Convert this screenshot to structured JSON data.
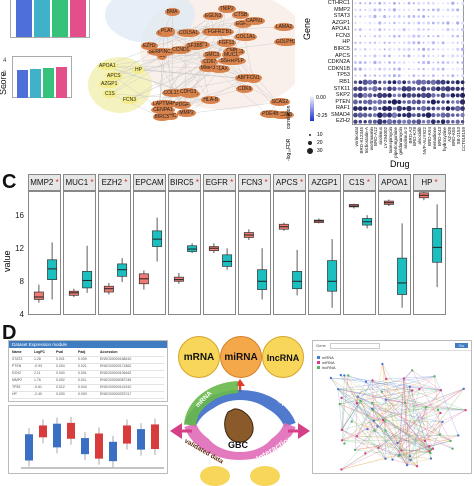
{
  "panels": {
    "c": "C",
    "d": "D"
  },
  "score_label": "Score",
  "score_bar_colors": [
    "#4f6fd8",
    "#3fb2c9",
    "#37c27c",
    "#e24f8a"
  ],
  "network": {
    "orange_nodes": [
      "EIF1AX",
      "MTOR",
      "CDS",
      "LAPTM4B",
      "LGALS3",
      "SFRP4",
      "CTSB",
      "SCARB1",
      "EGFR",
      "SSRRPLP",
      "BMA",
      "SLC2A3",
      "C5",
      "LAMA2",
      "MMP3",
      "COL1A1",
      "EHC",
      "CHD6",
      "FGF13",
      "COL1S4",
      "EPHX1",
      "CENPA1",
      "PDGF",
      "FGFR1",
      "CMB",
      "ERG",
      "PLAT",
      "EGLN3",
      "SERPINC3",
      "ABCC2",
      "GOLPH3",
      "CD67",
      "HLA-B",
      "SMC3",
      "COL5A1",
      "CAPN1",
      "CDH13",
      "PDE4B",
      "SCAS2",
      "FCN1",
      "TNIP2",
      "SF3B5",
      "CCND1",
      "CDK6",
      "MMP2",
      "EZH2",
      "MUC1",
      "BIRC5"
    ],
    "yellow_nodes": [
      "APOA1",
      "APCS",
      "AZGP1",
      "C1S",
      "FCN3",
      "HP"
    ]
  },
  "dotplot": {
    "genes": [
      "CTHRC1",
      "MMP2",
      "STAT3",
      "AZGP1",
      "APOA1",
      "FCN3",
      "HP",
      "BIRC5",
      "APCS",
      "CDKN2A",
      "CDKN1B",
      "TP53",
      "RB1",
      "STK11",
      "SKP2",
      "PTEN",
      "RAF1",
      "SMAD4",
      "EZH2"
    ],
    "drugs": [
      "vorinostat",
      "BRD-K12345",
      "trichostatin-A",
      "wortmannin",
      "BRD-A12",
      "sirolimus",
      "LY-294002",
      "tanespimycin",
      "piperlongumine",
      "geldanamycin",
      "sirolimus-2",
      "BRD-A3",
      "BRD-K78",
      "alvocidib",
      "NVP-AUY922",
      "BRD-K94",
      "menadione",
      "BRD-K43",
      "hydroxyzine",
      "AZ-628",
      "BRD-K55",
      "SB-2153",
      "CCT018159"
    ],
    "xlabel": "Drug",
    "ylabel": "Gene",
    "legend": {
      "title": "correlation",
      "ticks": [
        "0.00",
        "-0.25"
      ],
      "size_title": "-log₁₀FDR",
      "sizes": [
        "10",
        "20",
        "30"
      ]
    }
  },
  "boxplot": {
    "ylabel": "value",
    "yticks": [
      "16",
      "12",
      "8",
      "4"
    ],
    "colors": {
      "normal": "#f07b72",
      "tumor": "#1cbfc0"
    },
    "genes": [
      {
        "name": "MMP2",
        "normal": {
          "whisker_low": 5.6,
          "q1": 6.0,
          "median": 6.3,
          "q3": 6.9,
          "whisker_high": 7.8
        },
        "tumor": {
          "whisker_low": 6.0,
          "q1": 8.4,
          "median": 9.7,
          "q3": 10.8,
          "whisker_high": 12.9
        }
      },
      {
        "name": "MUC1",
        "normal": {
          "whisker_low": 6.3,
          "q1": 6.5,
          "median": 6.8,
          "q3": 7.0,
          "whisker_high": 7.3
        },
        "tumor": {
          "whisker_low": 6.8,
          "q1": 7.4,
          "median": 8.3,
          "q3": 9.4,
          "whisker_high": 12.5
        }
      },
      {
        "name": "EZH2",
        "normal": {
          "whisker_low": 6.6,
          "q1": 6.9,
          "median": 7.3,
          "q3": 7.6,
          "whisker_high": 8.0
        },
        "tumor": {
          "whisker_low": 8.1,
          "q1": 8.8,
          "median": 9.6,
          "q3": 10.3,
          "whisker_high": 11.0
        }
      },
      {
        "name": "EPCAM",
        "normal": {
          "whisker_low": 7.2,
          "q1": 7.9,
          "median": 8.5,
          "q3": 9.1,
          "whisker_high": 9.5
        },
        "tumor": {
          "whisker_low": 10.6,
          "q1": 12.4,
          "median": 13.3,
          "q3": 14.3,
          "whisker_high": 15.9
        }
      },
      {
        "name": "BIRC5",
        "normal": {
          "whisker_low": 7.9,
          "q1": 8.2,
          "median": 8.4,
          "q3": 8.7,
          "whisker_high": 9.2
        },
        "tumor": {
          "whisker_low": 11.6,
          "q1": 11.8,
          "median": 12.1,
          "q3": 12.5,
          "whisker_high": 12.8
        }
      },
      {
        "name": "EGFR",
        "normal": {
          "whisker_low": 11.6,
          "q1": 11.9,
          "median": 12.2,
          "q3": 12.4,
          "whisker_high": 12.8
        },
        "tumor": {
          "whisker_low": 9.6,
          "q1": 10.0,
          "median": 10.6,
          "q3": 11.4,
          "whisker_high": 12.2
        }
      },
      {
        "name": "FCN3",
        "normal": {
          "whisker_low": 13.2,
          "q1": 13.5,
          "median": 13.8,
          "q3": 14.1,
          "whisker_high": 14.5
        },
        "tumor": {
          "whisker_low": 6.0,
          "q1": 7.2,
          "median": 8.2,
          "q3": 9.6,
          "whisker_high": 12.2
        }
      },
      {
        "name": "APCS",
        "normal": {
          "whisker_low": 14.3,
          "q1": 14.5,
          "median": 14.8,
          "q3": 15.1,
          "whisker_high": 15.3
        },
        "tumor": {
          "whisker_low": 6.5,
          "q1": 7.3,
          "median": 8.2,
          "q3": 9.4,
          "whisker_high": 12.0
        }
      },
      {
        "name": "AZGP1",
        "normal": {
          "whisker_low": 15.2,
          "q1": 15.3,
          "median": 15.5,
          "q3": 15.6,
          "whisker_high": 15.8
        },
        "tumor": {
          "whisker_low": 5.0,
          "q1": 7.0,
          "median": 8.2,
          "q3": 10.7,
          "whisker_high": 13.3
        }
      },
      {
        "name": "C1S",
        "normal": {
          "whisker_low": 17.0,
          "q1": 17.2,
          "median": 17.3,
          "q3": 17.5,
          "whisker_high": 17.6
        },
        "tumor": {
          "whisker_low": 14.6,
          "q1": 15.0,
          "median": 15.4,
          "q3": 15.8,
          "whisker_high": 16.2
        }
      },
      {
        "name": "APOA1",
        "normal": {
          "whisker_low": 17.3,
          "q1": 17.5,
          "median": 17.7,
          "q3": 17.9,
          "whisker_high": 18.1
        },
        "tumor": {
          "whisker_low": 5.0,
          "q1": 6.6,
          "median": 8.0,
          "q3": 11.0,
          "whisker_high": 15.2
        }
      },
      {
        "name": "HP",
        "normal": {
          "whisker_low": 18.0,
          "q1": 18.3,
          "median": 18.6,
          "q3": 18.9,
          "whisker_high": 19.2
        },
        "tumor": {
          "whisker_low": 7.5,
          "q1": 10.5,
          "median": 12.3,
          "q3": 14.6,
          "whisker_high": 17.5
        }
      }
    ],
    "ylim": [
      4,
      19
    ]
  },
  "diagram": {
    "rna_types": [
      "mRNA",
      "miRNA",
      "lncRNA"
    ],
    "center": "GBC",
    "arc_labels": {
      "left": "mRNA",
      "right": "ncRNA",
      "bottom_left": "validated data",
      "bottom_right": "Interaction"
    },
    "colors": {
      "yellow": "#f7d65a",
      "orange": "#f5a84a",
      "arc_green": "#67b84a",
      "arc_blue": "#3c6bc9",
      "arc_pink": "#e06cb8"
    },
    "table_title": "Dataset Expression module",
    "table_headers": [
      "Name",
      "LogFC",
      "Pval",
      "Padj",
      "Accession"
    ],
    "table_rows": [
      [
        "STAT3",
        "1.28",
        "0.001",
        "0.009",
        "ENSG00000168610"
      ],
      [
        "PTEN",
        "-0.93",
        "0.004",
        "0.021",
        "ENSG00000171862"
      ],
      [
        "EZH2",
        "2.11",
        "0.000",
        "0.001",
        "ENSG00000106462"
      ],
      [
        "MMP2",
        "1.76",
        "0.002",
        "0.011",
        "ENSG00000087245"
      ],
      [
        "TP53",
        "-0.61",
        "0.012",
        "0.044",
        "ENSG00000141510"
      ],
      [
        "HP",
        "-2.40",
        "0.000",
        "0.000",
        "ENSG00000257017"
      ]
    ],
    "network_legend": [
      "mRNA",
      "miRNA",
      "lncRNA"
    ],
    "search_button": "Go",
    "filter_label": "Gene"
  }
}
